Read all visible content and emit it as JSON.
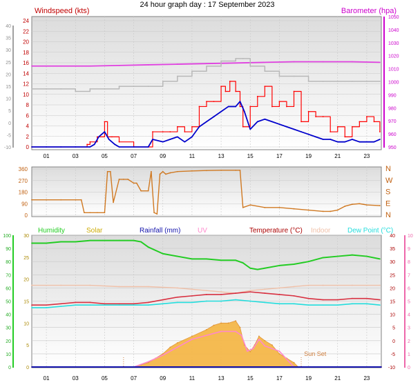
{
  "page": {
    "title": "24 hour graph day : 17 September 2023"
  },
  "colors": {
    "windspeed": "#ff0000",
    "gust": "#0000cc",
    "barometer": "#e040e0",
    "baro_label": "#cc00cc",
    "grey": "#b8b8b8",
    "direction": "#d07820",
    "humidity": "#22cc22",
    "solar": "#ccaa00",
    "solar_fill": "#f5b84a",
    "rainfall": "#1010aa",
    "uv": "#ff88cc",
    "temperature": "#aa0000",
    "temperature_line": "#d83040",
    "indoor": "#f0c0a8",
    "dewpoint": "#22dddd",
    "grid": "#c8c8c8"
  },
  "chart_data": [
    {
      "type": "line",
      "name": "wind",
      "title": "Windspeed (kts)",
      "right_title": "Barometer (hpa)",
      "left_ticks": [
        "24",
        "22",
        "20",
        "18",
        "16",
        "14",
        "12",
        "10",
        "8",
        "6",
        "4",
        "2",
        "0"
      ],
      "left_outer_ticks": [
        "40",
        "35",
        "30",
        "25",
        "20",
        "15",
        "10",
        "5",
        "0",
        "-5",
        "-10"
      ],
      "right_ticks": [
        "1050",
        "1040",
        "1030",
        "1020",
        "1010",
        "1000",
        "990",
        "980",
        "970",
        "960",
        "950"
      ],
      "x_ticks": [
        "01",
        "03",
        "05",
        "07",
        "09",
        "11",
        "13",
        "15",
        "17",
        "19",
        "21",
        "23"
      ],
      "ylim": [
        0,
        25
      ],
      "baro_lim": [
        950,
        1053
      ],
      "series": [
        {
          "name": "Windspeed",
          "key": "windspeed",
          "x": [
            0,
            1,
            2,
            3,
            3.8,
            4,
            4.5,
            5,
            5.2,
            5.5,
            6,
            7,
            8,
            8.3,
            9,
            9.5,
            10,
            10.5,
            11,
            11.5,
            12,
            12.5,
            13,
            13.3,
            13.6,
            14,
            14.3,
            14.5,
            15,
            15.5,
            16,
            16.5,
            17,
            17.5,
            18,
            18.5,
            19,
            19.5,
            20,
            20.5,
            21,
            21.5,
            22,
            22.5,
            23,
            23.5,
            23.9
          ],
          "values": [
            0,
            0,
            0,
            0,
            0.5,
            1,
            2,
            5,
            2,
            2,
            1,
            0,
            0,
            3,
            3,
            3,
            4,
            3,
            4,
            8,
            9,
            9,
            12,
            11,
            13,
            11,
            8,
            4,
            8,
            10,
            12,
            8,
            9,
            8,
            11,
            5,
            7,
            6,
            6,
            3,
            4,
            2,
            4,
            5,
            6,
            5,
            3
          ]
        },
        {
          "name": "Gust",
          "key": "gust",
          "x": [
            0,
            1,
            2,
            3,
            4,
            4.3,
            4.6,
            5,
            5.3,
            5.7,
            6,
            7,
            8,
            8.3,
            9,
            9.5,
            10,
            10.5,
            11,
            11.5,
            12,
            12.5,
            13,
            13.5,
            14,
            14.3,
            14.6,
            15,
            15.5,
            16,
            16.5,
            17,
            17.5,
            18,
            18.5,
            19,
            19.5,
            20,
            20.5,
            21,
            21.5,
            22,
            22.5,
            23,
            23.5,
            23.9
          ],
          "values": [
            0,
            0,
            0,
            0,
            0,
            0.5,
            2,
            3,
            1.5,
            0.5,
            0,
            0,
            0,
            1.5,
            1,
            1.5,
            2,
            1,
            2,
            4,
            5,
            6,
            7,
            8,
            8,
            9,
            7,
            3.5,
            5,
            5.5,
            5,
            4.5,
            4,
            3.5,
            3,
            2.5,
            2,
            1.5,
            1.5,
            1,
            1,
            1.5,
            1,
            1,
            1,
            1.5
          ]
        },
        {
          "name": "Barometer",
          "key": "barometer",
          "x": [
            0,
            2,
            4,
            6,
            8,
            10,
            12,
            14,
            16,
            18,
            20,
            22,
            23.9
          ],
          "values": [
            1016,
            1016,
            1016,
            1016.5,
            1017,
            1017.5,
            1018,
            1018.5,
            1019,
            1019.5,
            1019.5,
            1019.5,
            1019
          ]
        },
        {
          "name": "Grey",
          "key": "grey",
          "x": [
            0,
            1,
            2,
            3,
            4,
            5,
            6,
            7,
            8,
            9,
            10,
            11,
            12,
            13,
            14,
            14.5,
            15,
            16,
            17,
            18,
            19,
            20,
            21,
            22,
            23,
            23.9
          ],
          "values": [
            11.5,
            11.5,
            11.5,
            11,
            11.5,
            11.5,
            12,
            12,
            12,
            13,
            14,
            15,
            16,
            17,
            17.5,
            17.5,
            16,
            15,
            14,
            14,
            13,
            13,
            13,
            13,
            13,
            13
          ]
        }
      ]
    },
    {
      "type": "line",
      "name": "wind-direction",
      "left_ticks": [
        "360",
        "270",
        "180",
        "90",
        "0"
      ],
      "right_ticks": [
        "N",
        "W",
        "S",
        "E",
        "N"
      ],
      "ylim": [
        0,
        360
      ],
      "series": [
        {
          "name": "Direction",
          "key": "direction",
          "x": [
            0,
            1,
            2,
            3,
            3.4,
            3.6,
            4,
            4.5,
            5,
            5.2,
            5.4,
            5.6,
            6,
            6.3,
            6.6,
            7,
            7.2,
            7.5,
            8,
            8.2,
            8.4,
            8.6,
            8.8,
            9,
            9.2,
            9.5,
            10,
            11,
            12,
            13,
            14,
            14.3,
            14.5,
            15,
            16,
            17,
            18,
            19,
            20,
            20.5,
            21,
            21.5,
            22,
            22.5,
            23,
            23.9
          ],
          "values": [
            120,
            120,
            120,
            120,
            120,
            20,
            20,
            20,
            20,
            340,
            340,
            100,
            280,
            280,
            280,
            250,
            250,
            190,
            190,
            340,
            20,
            10,
            320,
            340,
            320,
            330,
            340,
            345,
            348,
            350,
            350,
            350,
            60,
            80,
            60,
            60,
            50,
            40,
            30,
            30,
            40,
            70,
            85,
            90,
            80,
            75
          ]
        }
      ]
    },
    {
      "type": "line",
      "name": "temperature-humidity-solar",
      "legend": [
        "Humidity",
        "Solar",
        "Rainfall (mm)",
        "UV",
        "Temperature (°C)",
        "Indoor",
        "Dew Point (°C)"
      ],
      "left_ticks": [
        "100",
        "90",
        "80",
        "70",
        "60",
        "50",
        "40",
        "30",
        "20",
        "10",
        "0"
      ],
      "left_inner_ticks": [
        "30",
        "25",
        "20",
        "15",
        "10",
        "5",
        "0"
      ],
      "right_ticks": [
        "40",
        "35",
        "30",
        "25",
        "20",
        "15",
        "10",
        "5",
        "0",
        "-5",
        "-10"
      ],
      "right_outer_ticks": [
        "10",
        "9",
        "8",
        "7",
        "6",
        "5",
        "4",
        "3",
        "2",
        "1",
        "0"
      ],
      "x_ticks": [
        "01",
        "03",
        "05",
        "07",
        "09",
        "11",
        "13",
        "15",
        "17",
        "19",
        "21",
        "23"
      ],
      "annotation": "Sun Set",
      "ylim_humidity": [
        0,
        100
      ],
      "ylim_temp": [
        -10,
        40
      ],
      "series": [
        {
          "name": "Humidity",
          "key": "humidity",
          "x": [
            0,
            1,
            2,
            3,
            4,
            5,
            6,
            7,
            7.5,
            8,
            9,
            10,
            11,
            12,
            13,
            14,
            14.5,
            15,
            15.5,
            16,
            17,
            18,
            19,
            20,
            21,
            22,
            23,
            23.9
          ],
          "values": [
            94,
            94,
            95,
            95,
            96,
            96,
            96,
            96,
            95,
            91,
            86,
            84,
            82,
            82,
            81,
            81,
            79,
            75,
            74,
            75,
            77,
            78,
            80,
            83,
            84,
            85,
            84,
            82
          ]
        },
        {
          "name": "Indoor",
          "key": "indoor",
          "x": [
            0,
            2,
            4,
            6,
            8,
            10,
            11,
            12,
            13,
            14,
            15,
            16,
            17,
            18,
            19,
            20,
            22,
            23.9
          ],
          "values": [
            21,
            21,
            21,
            20.5,
            20.5,
            20,
            19.5,
            19,
            18.5,
            18,
            19,
            19.5,
            20,
            20.5,
            21,
            21,
            21,
            21
          ]
        },
        {
          "name": "Temperature",
          "key": "temperature_line",
          "x": [
            0,
            1,
            2,
            3,
            4,
            5,
            6,
            7,
            8,
            9,
            10,
            11,
            12,
            13,
            14,
            15,
            16,
            17,
            18,
            19,
            20,
            21,
            22,
            23,
            23.9
          ],
          "values": [
            13.5,
            13.5,
            14,
            14.5,
            14.5,
            14,
            14,
            14,
            14.5,
            15.5,
            16.5,
            17,
            17.5,
            17.5,
            18,
            18.5,
            18,
            17.5,
            17,
            16,
            15.5,
            15.5,
            16,
            16,
            15.5
          ]
        },
        {
          "name": "Dew Point",
          "key": "dewpoint",
          "x": [
            0,
            1,
            2,
            3,
            4,
            5,
            6,
            7,
            8,
            9,
            10,
            11,
            12,
            13,
            14,
            15,
            16,
            17,
            18,
            19,
            20,
            21,
            22,
            23,
            23.9
          ],
          "values": [
            12.5,
            12.5,
            13,
            13.5,
            13.5,
            13.5,
            13.5,
            13.5,
            13.5,
            14,
            14.5,
            14.5,
            15,
            15,
            15.5,
            15,
            14.5,
            14,
            14,
            13.5,
            13.5,
            13.5,
            14,
            14,
            13.5
          ]
        },
        {
          "name": "Solar",
          "key": "solar_fill",
          "x": [
            0,
            6,
            7,
            7.5,
            8,
            8.5,
            9,
            9.5,
            10,
            11,
            12,
            12.5,
            13,
            13.5,
            14,
            14.3,
            14.6,
            15,
            15.3,
            15.6,
            16,
            16.5,
            17,
            17.5,
            18,
            18.3,
            24
          ],
          "values": [
            0,
            0,
            0,
            0.5,
            1,
            2,
            3,
            4.5,
            5.5,
            7,
            8.5,
            9.5,
            10,
            10,
            10.5,
            9,
            5,
            3.5,
            5,
            7,
            6,
            5,
            3,
            2,
            1,
            0,
            0
          ]
        },
        {
          "name": "UV",
          "key": "uv",
          "x": [
            0,
            7,
            8,
            9,
            10,
            11,
            12,
            13,
            14,
            14.4,
            14.8,
            15.2,
            15.6,
            16,
            17,
            18,
            24
          ],
          "values": [
            -10,
            -10,
            -8,
            -5.5,
            -2.5,
            0.5,
            2,
            3.5,
            3.5,
            2,
            -4,
            -3,
            0.5,
            -2,
            -4,
            -10,
            -10
          ]
        },
        {
          "name": "Rainfall",
          "key": "rainfall",
          "x": [
            0,
            24
          ],
          "values": [
            0,
            0
          ]
        }
      ]
    }
  ]
}
